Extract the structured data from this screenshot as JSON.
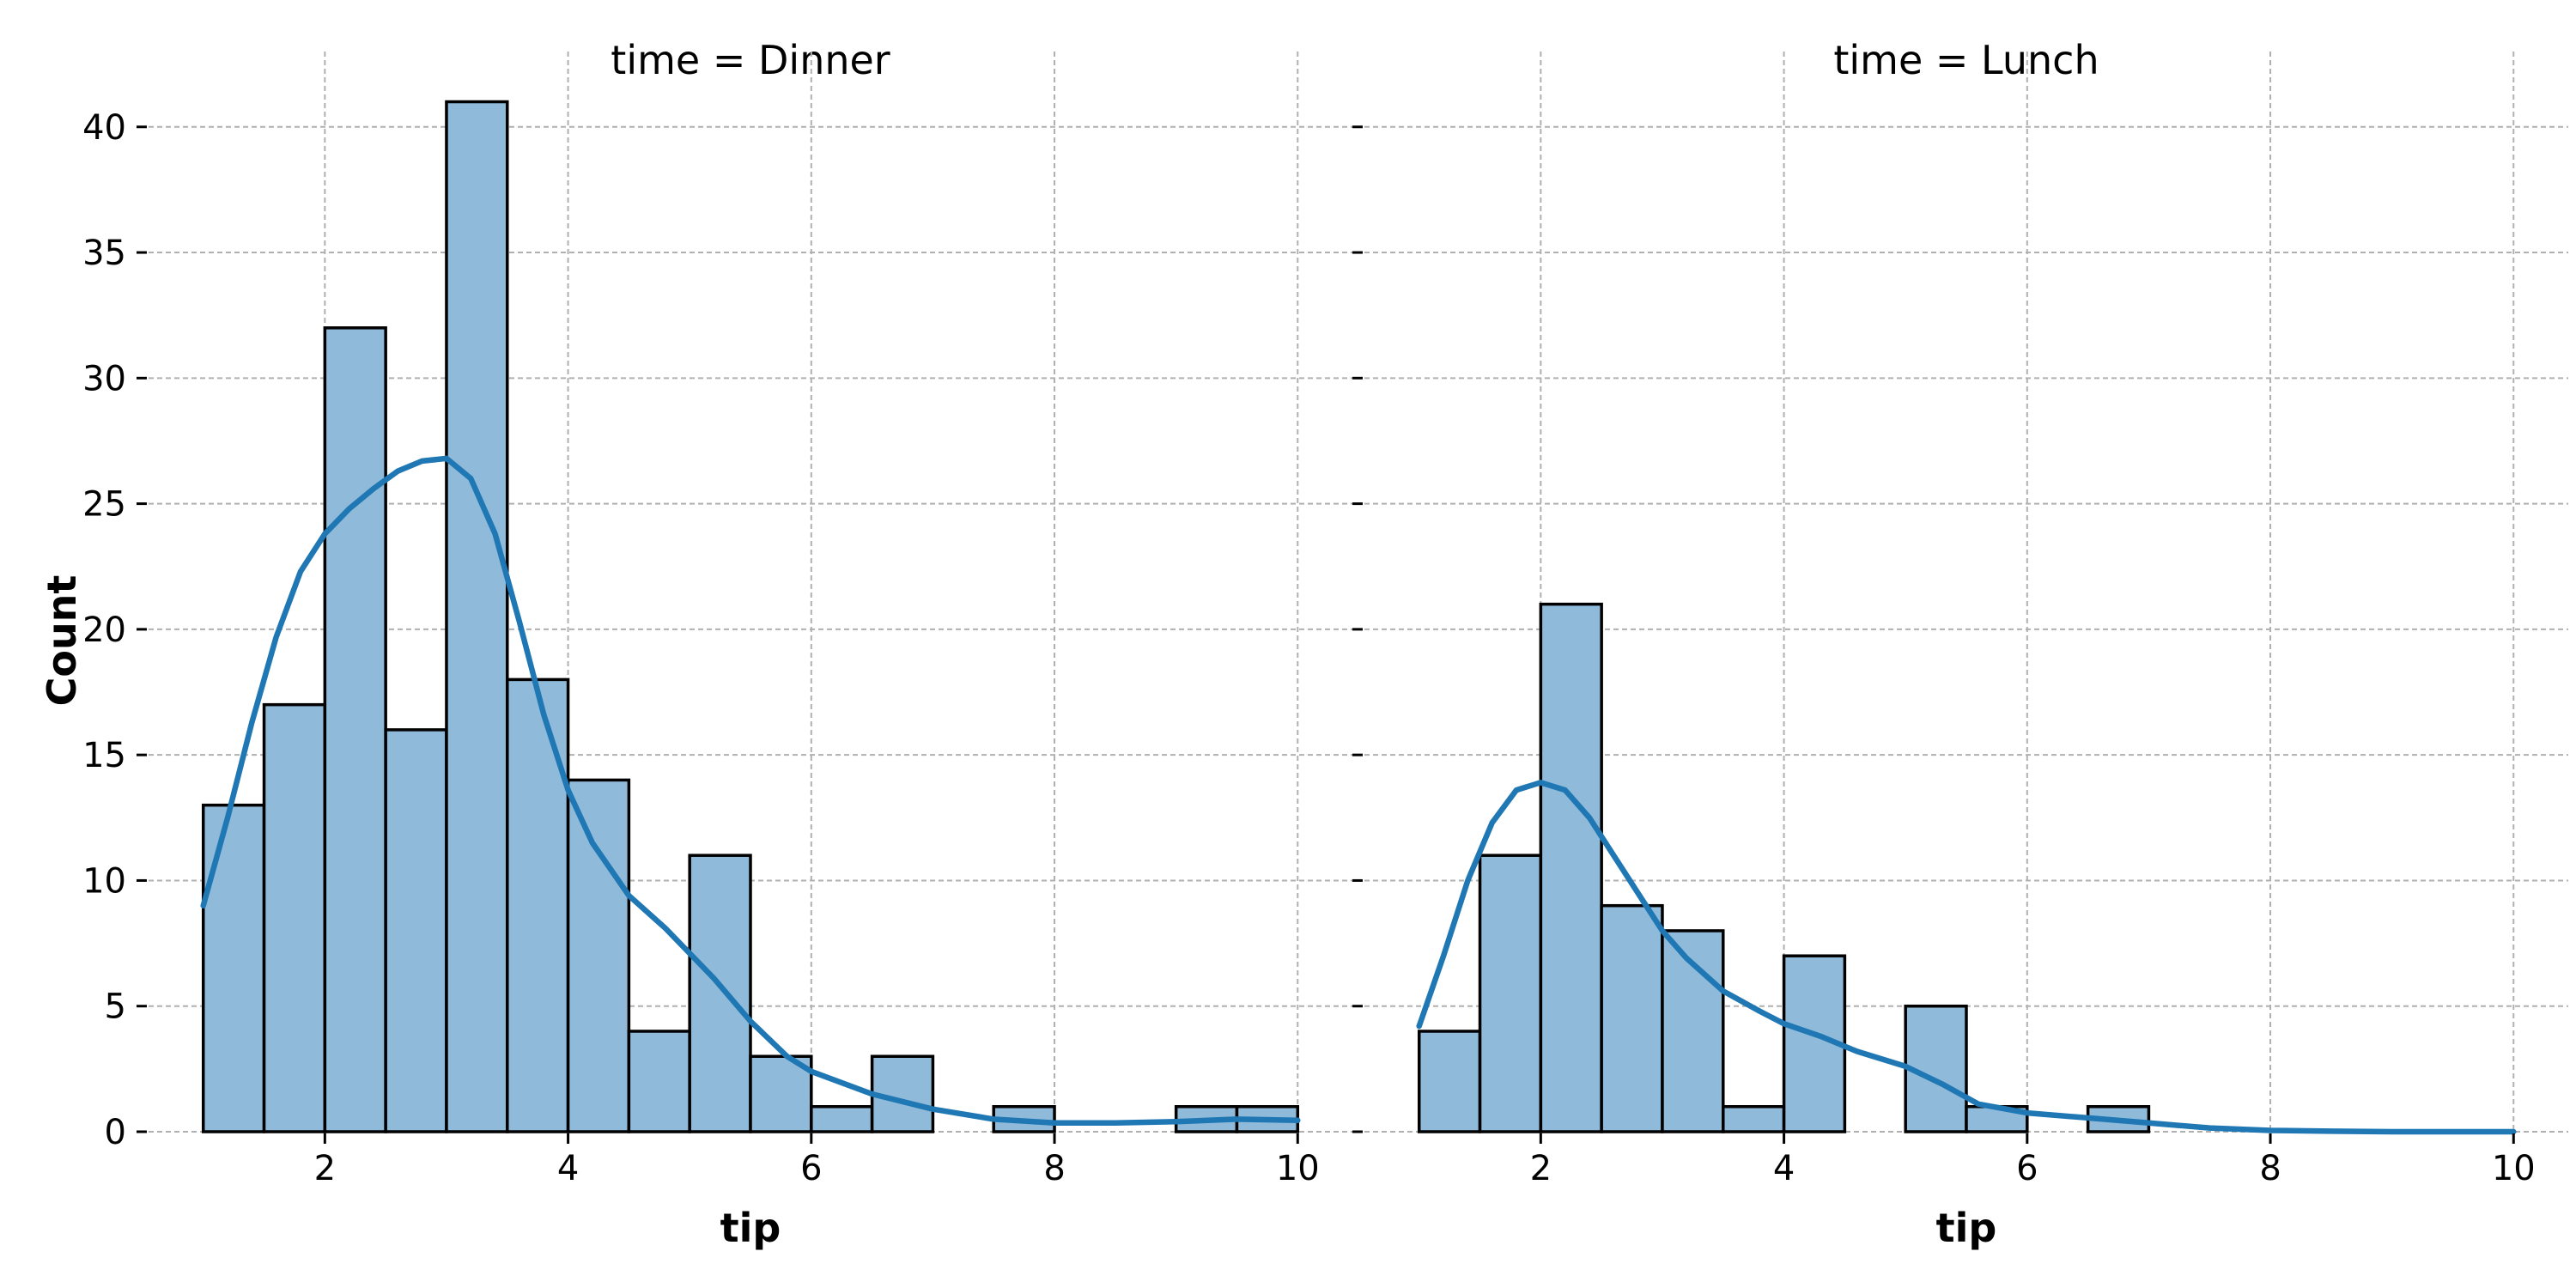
{
  "chart_data": [
    {
      "type": "bar",
      "title": "time = Dinner",
      "xlabel": "tip",
      "ylabel": "Count",
      "xlim": [
        0.55,
        10.45
      ],
      "ylim": [
        0,
        43
      ],
      "xticks": [
        2,
        4,
        6,
        8,
        10
      ],
      "yticks": [
        0,
        5,
        10,
        15,
        20,
        25,
        30,
        35,
        40
      ],
      "grid": true,
      "bin_edges": [
        1.0,
        1.5,
        2.0,
        2.5,
        3.0,
        3.5,
        4.0,
        4.5,
        5.0,
        5.5,
        6.0,
        6.5,
        7.0,
        7.5,
        8.0,
        8.5,
        9.0,
        9.5,
        10.0
      ],
      "values": [
        13,
        17,
        32,
        16,
        41,
        18,
        14,
        4,
        11,
        3,
        1,
        3,
        0,
        1,
        0,
        0,
        1,
        1
      ],
      "kde": {
        "x": [
          1.0,
          1.2,
          1.4,
          1.6,
          1.8,
          2.0,
          2.2,
          2.4,
          2.6,
          2.8,
          3.0,
          3.2,
          3.4,
          3.6,
          3.8,
          4.0,
          4.2,
          4.5,
          4.8,
          5.0,
          5.2,
          5.5,
          5.8,
          6.0,
          6.5,
          7.0,
          7.5,
          8.0,
          8.5,
          9.0,
          9.5,
          10.0
        ],
        "y": [
          9.0,
          12.5,
          16.3,
          19.7,
          22.3,
          23.8,
          24.8,
          25.6,
          26.3,
          26.7,
          26.8,
          26.0,
          23.8,
          20.3,
          16.6,
          13.6,
          11.5,
          9.4,
          8.1,
          7.1,
          6.1,
          4.4,
          3.0,
          2.4,
          1.5,
          0.9,
          0.5,
          0.35,
          0.35,
          0.4,
          0.5,
          0.45
        ]
      },
      "colors": {
        "bar_fill": "#8fbada",
        "bar_edge": "#000000",
        "kde_line": "#1f77b4"
      }
    },
    {
      "type": "bar",
      "title": "time = Lunch",
      "xlabel": "tip",
      "ylabel": "",
      "xlim": [
        0.55,
        10.45
      ],
      "ylim": [
        0,
        43
      ],
      "xticks": [
        2,
        4,
        6,
        8,
        10
      ],
      "yticks": [
        0,
        5,
        10,
        15,
        20,
        25,
        30,
        35,
        40
      ],
      "yticklabels_shown": false,
      "grid": true,
      "bin_edges": [
        1.0,
        1.5,
        2.0,
        2.5,
        3.0,
        3.5,
        4.0,
        4.5,
        5.0,
        5.5,
        6.0,
        6.5,
        7.0
      ],
      "values": [
        4,
        11,
        21,
        9,
        8,
        1,
        7,
        0,
        5,
        1,
        0,
        1
      ],
      "kde": {
        "x": [
          1.0,
          1.2,
          1.4,
          1.6,
          1.8,
          2.0,
          2.2,
          2.4,
          2.6,
          2.8,
          3.0,
          3.2,
          3.5,
          3.8,
          4.0,
          4.3,
          4.6,
          5.0,
          5.3,
          5.6,
          6.0,
          6.5,
          7.0,
          7.5,
          8.0,
          8.5,
          9.0,
          10.0
        ],
        "y": [
          4.2,
          7.0,
          10.0,
          12.3,
          13.6,
          13.9,
          13.6,
          12.5,
          11.0,
          9.5,
          8.0,
          6.9,
          5.6,
          4.8,
          4.3,
          3.8,
          3.2,
          2.6,
          1.9,
          1.1,
          0.75,
          0.55,
          0.35,
          0.15,
          0.05,
          0.02,
          0.0,
          0.0
        ]
      },
      "colors": {
        "bar_fill": "#8fbada",
        "bar_edge": "#000000",
        "kde_line": "#1f77b4"
      }
    }
  ]
}
